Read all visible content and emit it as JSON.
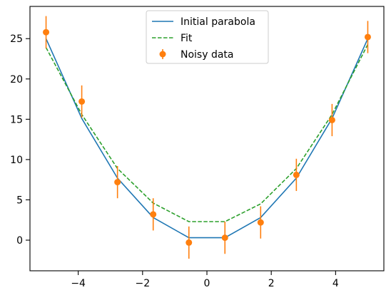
{
  "chart_data": {
    "type": "line",
    "title": "",
    "xlabel": "",
    "ylabel": "",
    "xlim": [
      -5.5,
      5.5
    ],
    "ylim": [
      -3.8,
      29.0
    ],
    "grid": false,
    "legend_placement": "top-center",
    "x_ticks": [
      -4,
      -2,
      0,
      2,
      4
    ],
    "x_tick_labels": [
      "−4",
      "−2",
      "0",
      "2",
      "4"
    ],
    "y_ticks": [
      0,
      5,
      10,
      15,
      20,
      25
    ],
    "y_tick_labels": [
      "0",
      "5",
      "10",
      "15",
      "20",
      "25"
    ],
    "x": [
      -5.0,
      -3.89,
      -2.78,
      -1.67,
      -0.56,
      0.56,
      1.67,
      2.78,
      3.89,
      5.0
    ],
    "series": [
      {
        "name": "Initial parabola",
        "style": "solid-line",
        "color": "#1f77b4",
        "values": [
          25.0,
          15.1,
          7.7,
          2.8,
          0.3,
          0.3,
          2.8,
          7.7,
          15.1,
          25.0
        ]
      },
      {
        "name": "Fit",
        "style": "dashed-line",
        "color": "#2ca02c",
        "values": [
          23.9,
          15.6,
          8.9,
          4.6,
          2.3,
          2.3,
          4.5,
          8.9,
          15.6,
          24.3
        ]
      },
      {
        "name": "Noisy data",
        "style": "points-with-errorbars",
        "color": "#ff7f0e",
        "values": [
          25.8,
          17.2,
          7.2,
          3.2,
          -0.3,
          0.3,
          2.2,
          8.1,
          14.9,
          25.2
        ],
        "errors": [
          2.0,
          2.0,
          2.0,
          2.0,
          2.0,
          2.0,
          2.0,
          2.0,
          2.0,
          2.0
        ]
      }
    ]
  }
}
